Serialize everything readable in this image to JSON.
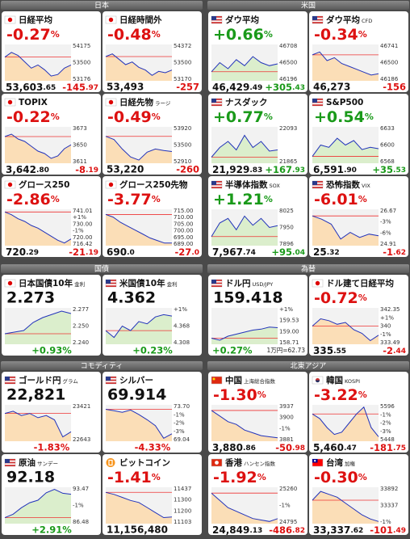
{
  "sections": [
    {
      "title": "日本",
      "tiles": [
        {
          "flag": "jp",
          "name": "日経平均",
          "big": "-0.27%",
          "value": "53,603.65",
          "change": "-145.97",
          "labels": [
            "54175",
            "53500",
            "53176"
          ],
          "ylim": [
            53100,
            54250
          ],
          "line": [
            53850,
            54000,
            53900,
            53700,
            53500,
            53600,
            53450,
            53250,
            53300,
            53500,
            53600
          ]
        },
        {
          "flag": "jp",
          "name": "日経時間外",
          "big": "-0.48%",
          "value": "53,493",
          "change": "-257",
          "labels": [
            "54372",
            "53500",
            "53170"
          ],
          "ylim": [
            53100,
            54450
          ],
          "line": [
            54000,
            54100,
            53900,
            53700,
            53800,
            53600,
            53500,
            53300,
            53450,
            53400,
            53500
          ]
        },
        {
          "flag": "jp",
          "name": "TOPIX",
          "big": "-0.22%",
          "value": "3,642.80",
          "change": "-8.19",
          "labels": [
            "3673",
            "3650",
            "3611"
          ],
          "ylim": [
            3605,
            3680
          ],
          "line": [
            3660,
            3665,
            3655,
            3650,
            3640,
            3630,
            3625,
            3615,
            3620,
            3635,
            3643
          ]
        },
        {
          "flag": "jp",
          "name": "日経先物",
          "sub": "ラージ",
          "big": "-0.49%",
          "value": "53,220",
          "change": "-260",
          "labels": [
            "53920",
            "53500",
            "52910"
          ],
          "ylim": [
            52850,
            54000
          ],
          "line": [
            53700,
            53600,
            53300,
            53050,
            52950,
            53200,
            53300,
            53250,
            53220
          ]
        },
        {
          "flag": "jp",
          "name": "グロース250",
          "big": "-2.86%",
          "value": "720.29",
          "change": "-21.19",
          "labels": [
            "741.01",
            "+1%",
            "730.00",
            "-1%",
            "720.00",
            "716.42"
          ],
          "ylim": [
            715,
            742
          ],
          "line": [
            740,
            738,
            735,
            733,
            730,
            728,
            725,
            722,
            719,
            717,
            720
          ]
        },
        {
          "flag": "jp",
          "name": "グロース250先物",
          "big": "-3.77%",
          "value": "690.0",
          "change": "-27.0",
          "labels": [
            "715.00",
            "710.00",
            "705.00",
            "700.00",
            "695.00",
            "689.00"
          ],
          "ylim": [
            688,
            716
          ],
          "line": [
            712,
            710,
            706,
            703,
            700,
            697,
            694,
            692,
            690,
            690
          ]
        }
      ]
    },
    {
      "title": "米国",
      "tiles": [
        {
          "flag": "us",
          "name": "ダウ平均",
          "big": "+0.66%",
          "value": "46,429.49",
          "change": "+305.43",
          "labels": [
            "46708",
            "46500",
            "46196"
          ],
          "ylim": [
            46150,
            46750
          ],
          "line": [
            46300,
            46450,
            46350,
            46500,
            46400,
            46550,
            46450,
            46400,
            46430
          ]
        },
        {
          "flag": "us",
          "name": "ダウ平均",
          "sub": "CFD",
          "big": "-0.34%",
          "value": "46,273",
          "change": "-156",
          "labels": [
            "46741",
            "46500",
            "46186"
          ],
          "ylim": [
            46150,
            46780
          ],
          "line": [
            46600,
            46650,
            46500,
            46550,
            46450,
            46400,
            46350,
            46300,
            46250,
            46273
          ]
        },
        {
          "flag": "us",
          "name": "ナスダック",
          "big": "+0.77%",
          "value": "21,929.83",
          "change": "+167.93",
          "labels": [
            "22093",
            "21865"
          ],
          "ylim": [
            21820,
            22120
          ],
          "line": [
            21870,
            21950,
            22000,
            21930,
            22050,
            21950,
            22000,
            21920,
            21930
          ]
        },
        {
          "flag": "us",
          "name": "S&P500",
          "big": "+0.54%",
          "value": "6,591.90",
          "change": "+35.53",
          "labels": [
            "6633",
            "6600",
            "6568"
          ],
          "ylim": [
            6560,
            6640
          ],
          "line": [
            6575,
            6600,
            6595,
            6615,
            6600,
            6610,
            6590,
            6595,
            6592
          ]
        },
        {
          "flag": "us",
          "name": "半導体指数",
          "sub": "SOX",
          "big": "+1.21%",
          "value": "7,967.74",
          "change": "+95.04",
          "labels": [
            "8025",
            "7950",
            "7896"
          ],
          "ylim": [
            7880,
            8040
          ],
          "line": [
            7920,
            7980,
            8000,
            7950,
            8010,
            7970,
            8000,
            7960,
            7968
          ]
        },
        {
          "flag": "us",
          "name": "恐怖指数",
          "sub": "VIX",
          "big": "-6.01%",
          "value": "25.32",
          "change": "-1.62",
          "labels": [
            "26.67",
            "-3%",
            "-6%",
            "24.91"
          ],
          "ylim": [
            24.7,
            26.9
          ],
          "line": [
            26.5,
            26.3,
            26.0,
            25.1,
            25.5,
            25.2,
            25.4,
            25.3
          ]
        }
      ]
    },
    {
      "title": "国債",
      "tiles": [
        {
          "flag": "jp",
          "name": "日本国債10年",
          "sub": "金利",
          "big": "2.273",
          "change": "+0.93%",
          "labels": [
            "2.277",
            "2.250",
            "2.240"
          ],
          "ylim": [
            2.235,
            2.28
          ],
          "line": [
            2.248,
            2.25,
            2.252,
            2.262,
            2.268,
            2.272,
            2.276,
            2.273
          ]
        },
        {
          "flag": "us",
          "name": "米国債10年",
          "sub": "金利",
          "big": "4.362",
          "change": "+0.23%",
          "labels": [
            "+1%",
            "4.368",
            "4.308"
          ],
          "ylim": [
            4.3,
            4.38
          ],
          "line": [
            4.33,
            4.315,
            4.34,
            4.33,
            4.35,
            4.345,
            4.36,
            4.365,
            4.362
          ]
        }
      ]
    },
    {
      "title": "為替",
      "tiles": [
        {
          "flag": "us",
          "name": "ドル円",
          "sub": "USD/JPY",
          "big": "159.418",
          "change": "+0.27%",
          "extra": "1万円=62.73",
          "labels": [
            "+1%",
            "159.53",
            "159.00",
            "158.71"
          ],
          "ylim": [
            158.6,
            160.4
          ],
          "line": [
            158.9,
            158.8,
            159.0,
            159.1,
            159.2,
            159.3,
            159.35,
            159.45,
            159.42
          ]
        },
        {
          "flag": "jp",
          "name": "ドル建て日経平均",
          "big": "-0.72%",
          "value": "335.55",
          "change": "-2.44",
          "labels": [
            "342.35",
            "+1%",
            "340",
            "-1%",
            "333.49"
          ],
          "ylim": [
            333,
            343
          ],
          "line": [
            338,
            340,
            339.5,
            338.5,
            339,
            337,
            336,
            334,
            335.5
          ]
        }
      ]
    },
    {
      "title": "コモディティ",
      "tiles": [
        {
          "flag": "us",
          "name": "ゴールド円",
          "sub": "グラム",
          "big": "22,821",
          "change": "-1.83%",
          "labels": [
            "23421",
            "22643"
          ],
          "ylim": [
            22600,
            23450
          ],
          "line": [
            23250,
            23300,
            23200,
            23250,
            23150,
            23200,
            23100,
            22700,
            22821
          ]
        },
        {
          "flag": "us",
          "name": "シルバー",
          "big": "69.914",
          "change": "-4.33%",
          "labels": [
            "73.70",
            "-1%",
            "-2%",
            "-3%",
            "69.04"
          ],
          "ylim": [
            68.9,
            73.8
          ],
          "line": [
            73.2,
            73.0,
            72.8,
            73.1,
            72.5,
            71.8,
            71.0,
            69.3,
            69.9
          ]
        },
        {
          "flag": "us",
          "name": "原油",
          "sub": "サンデー",
          "big": "92.18",
          "change": "+2.91%",
          "labels": [
            "93.47",
            "-1%",
            "86.48"
          ],
          "ylim": [
            86.3,
            93.6
          ],
          "line": [
            87.5,
            88.2,
            89.5,
            90.5,
            91.0,
            92.5,
            93.2,
            92.4,
            92.2
          ]
        },
        {
          "flag": "btc",
          "name": "ビットコイン",
          "big": "-1.41%",
          "value": "11,156,480",
          "labels": [
            "11437",
            "11300",
            "11200",
            "11103"
          ],
          "ylim": [
            11090000,
            11450000
          ],
          "line": [
            11400000,
            11380000,
            11350000,
            11320000,
            11300000,
            11250000,
            11200000,
            11150000,
            11156480
          ]
        }
      ]
    },
    {
      "title": "北東アジア",
      "tiles": [
        {
          "flag": "cn",
          "name": "中国",
          "sub": "上海総合指数",
          "big": "-1.30%",
          "value": "3,880.86",
          "change": "-50.98",
          "labels": [
            "3937",
            "3900",
            "-1%",
            "3881"
          ],
          "ylim": [
            3875,
            3940
          ],
          "line": [
            3930,
            3920,
            3910,
            3905,
            3895,
            3890,
            3885,
            3883,
            3881
          ]
        },
        {
          "flag": "kr",
          "name": "韓国",
          "sub": "KOSPI",
          "big": "-3.22%",
          "value": "5,460.47",
          "change": "-181.75",
          "labels": [
            "5596",
            "-1%",
            "-2%",
            "-3%",
            "5448"
          ],
          "ylim": [
            5440,
            5600
          ],
          "line": [
            5560,
            5540,
            5500,
            5470,
            5480,
            5520,
            5560,
            5590,
            5500,
            5460
          ]
        },
        {
          "flag": "hk",
          "name": "香港",
          "sub": "ハンセン指数",
          "big": "-1.92%",
          "value": "24,849.13",
          "change": "-486.82",
          "labels": [
            "25260",
            "-1%",
            "24795"
          ],
          "ylim": [
            24780,
            25280
          ],
          "line": [
            25200,
            25100,
            25000,
            24950,
            24900,
            24850,
            24830,
            24810,
            24849
          ]
        },
        {
          "flag": "tw",
          "name": "台湾",
          "sub": "加権",
          "big": "-0.30%",
          "value": "33,337.62",
          "change": "-101.49",
          "labels": [
            "33892",
            "33337",
            "-1%"
          ],
          "ylim": [
            33300,
            33920
          ],
          "line": [
            33700,
            33850,
            33800,
            33750,
            33650,
            33550,
            33450,
            33380,
            33337
          ]
        }
      ]
    }
  ]
}
